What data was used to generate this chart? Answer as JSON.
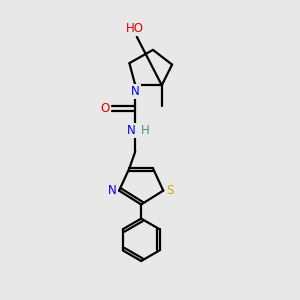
{
  "bg_color": "#e8e8e8",
  "atom_colors": {
    "C": "#000000",
    "N": "#0000ee",
    "O": "#dd0000",
    "S": "#ccaa00",
    "H": "#4a9090"
  },
  "bond_color": "#000000",
  "bond_width": 1.6,
  "fig_width": 3.0,
  "fig_height": 3.0,
  "dpi": 100
}
